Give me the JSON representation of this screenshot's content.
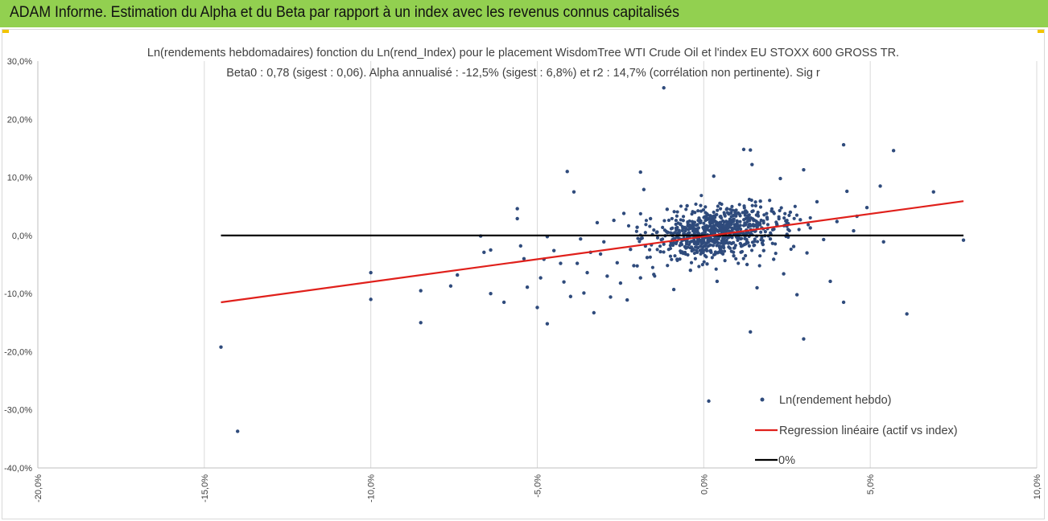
{
  "header": {
    "title": "ADAM Informe. Estimation du Alpha et du Beta par rapport à un index avec les revenus connus capitalisés"
  },
  "chart_data": {
    "type": "scatter",
    "title": "Ln(rendements hebdomadaires) fonction du Ln(rend_Index) pour le placement WisdomTree WTI Crude Oil  et l'index EU STOXX 600 GROSS TR.",
    "subtitle": "Beta0 : 0,78 (sigest : 0,06). Alpha annualisé : -12,5% (sigest : 6,8%) et r2 : 14,7% (corrélation non pertinente). Sig r",
    "xlim": [
      -20,
      10
    ],
    "ylim": [
      -40,
      30
    ],
    "x_ticks": [
      "-20,0%",
      "-15,0%",
      "-10,0%",
      "-5,0%",
      "0,0%",
      "5,0%",
      "10,0%"
    ],
    "y_ticks": [
      "30,0%",
      "20,0%",
      "10,0%",
      "0,0%",
      "-10,0%",
      "-20,0%",
      "-30,0%",
      "-40,0%"
    ],
    "grid": "vertical",
    "legend_position": "bottom-right",
    "colors": {
      "points": "#2f4b7c",
      "regression": "#e0201b",
      "zero": "#000000",
      "header": "#92d050"
    },
    "series": [
      {
        "name": "Ln(rendement hebdo)",
        "kind": "scatter",
        "points": [
          [
            -14.5,
            -19.2
          ],
          [
            -14.0,
            -33.7
          ],
          [
            -10.0,
            -6.4
          ],
          [
            -10.0,
            -11.0
          ],
          [
            -8.5,
            -9.5
          ],
          [
            -8.5,
            -15.0
          ],
          [
            -7.6,
            -8.7
          ],
          [
            -7.4,
            -6.8
          ],
          [
            -6.7,
            -0.1
          ],
          [
            -6.6,
            -2.9
          ],
          [
            -6.4,
            -2.5
          ],
          [
            -6.4,
            -10.0
          ],
          [
            -6.0,
            -11.5
          ],
          [
            -5.6,
            4.6
          ],
          [
            -5.6,
            2.9
          ],
          [
            -5.5,
            -1.8
          ],
          [
            -5.4,
            -4.0
          ],
          [
            -5.3,
            -8.9
          ],
          [
            -5.0,
            -12.4
          ],
          [
            -4.9,
            -7.3
          ],
          [
            -4.8,
            -4.1
          ],
          [
            -4.7,
            -15.2
          ],
          [
            -4.7,
            -0.2
          ],
          [
            -4.5,
            -2.6
          ],
          [
            -4.3,
            -4.8
          ],
          [
            -4.2,
            -8.0
          ],
          [
            -4.1,
            11.0
          ],
          [
            -4.0,
            -10.5
          ],
          [
            -3.9,
            7.5
          ],
          [
            -3.8,
            -4.8
          ],
          [
            -3.7,
            -0.6
          ],
          [
            -3.6,
            -9.9
          ],
          [
            -3.5,
            -6.4
          ],
          [
            -3.4,
            -2.9
          ],
          [
            -3.3,
            -13.3
          ],
          [
            -3.2,
            2.2
          ],
          [
            -3.1,
            -3.2
          ],
          [
            -3.0,
            -1.1
          ],
          [
            -2.9,
            -7.0
          ],
          [
            -2.8,
            -10.6
          ],
          [
            -2.7,
            2.6
          ],
          [
            -2.6,
            -4.7
          ],
          [
            -2.5,
            -8.2
          ],
          [
            -2.4,
            3.8
          ],
          [
            -2.3,
            -11.1
          ],
          [
            -2.2,
            -2.4
          ],
          [
            -2.1,
            -5.2
          ],
          [
            -2.0,
            1.4
          ],
          [
            -1.9,
            10.9
          ],
          [
            -1.9,
            -7.3
          ],
          [
            -1.8,
            7.9
          ],
          [
            -1.7,
            -3.8
          ],
          [
            -1.6,
            2.9
          ],
          [
            -1.5,
            -6.7
          ],
          [
            -1.4,
            0.6
          ],
          [
            -1.3,
            -2.8
          ],
          [
            -1.2,
            25.4
          ],
          [
            -1.1,
            4.5
          ],
          [
            -1.0,
            -1.7
          ],
          [
            -0.9,
            -9.3
          ],
          [
            -0.8,
            -4.1
          ],
          [
            -0.7,
            1.9
          ],
          [
            -0.6,
            -0.5
          ],
          [
            -0.5,
            5.1
          ],
          [
            -0.4,
            -6.0
          ],
          [
            -0.3,
            0.8
          ],
          [
            -0.2,
            -2.9
          ],
          [
            -0.1,
            2.2
          ],
          [
            0.0,
            -1.0
          ],
          [
            0.1,
            -4.9
          ],
          [
            0.15,
            -28.5
          ],
          [
            0.2,
            3.4
          ],
          [
            0.3,
            10.2
          ],
          [
            0.35,
            -0.2
          ],
          [
            0.4,
            -7.9
          ],
          [
            0.5,
            1.7
          ],
          [
            0.6,
            -2.1
          ],
          [
            0.7,
            4.6
          ],
          [
            0.8,
            0.4
          ],
          [
            0.9,
            -3.5
          ],
          [
            1.0,
            2.5
          ],
          [
            1.1,
            -1.4
          ],
          [
            1.2,
            14.8
          ],
          [
            1.3,
            -5.0
          ],
          [
            1.4,
            14.7
          ],
          [
            1.45,
            12.2
          ],
          [
            1.4,
            -16.6
          ],
          [
            1.5,
            0.9
          ],
          [
            1.6,
            -9.0
          ],
          [
            1.7,
            5.9
          ],
          [
            1.8,
            -2.6
          ],
          [
            1.9,
            3.1
          ],
          [
            2.0,
            -0.6
          ],
          [
            2.1,
            -4.1
          ],
          [
            2.2,
            1.8
          ],
          [
            2.3,
            9.8
          ],
          [
            2.4,
            -6.6
          ],
          [
            2.5,
            0.2
          ],
          [
            2.6,
            4.0
          ],
          [
            2.7,
            -1.9
          ],
          [
            2.8,
            -10.2
          ],
          [
            2.9,
            2.7
          ],
          [
            3.0,
            11.3
          ],
          [
            3.0,
            -17.8
          ],
          [
            3.1,
            -3.0
          ],
          [
            3.2,
            1.3
          ],
          [
            3.4,
            5.8
          ],
          [
            3.6,
            -0.7
          ],
          [
            3.8,
            -7.9
          ],
          [
            4.0,
            2.4
          ],
          [
            4.2,
            -11.5
          ],
          [
            4.2,
            15.6
          ],
          [
            4.3,
            7.6
          ],
          [
            4.5,
            0.8
          ],
          [
            4.6,
            3.3
          ],
          [
            4.9,
            4.8
          ],
          [
            5.3,
            8.5
          ],
          [
            5.4,
            -1.1
          ],
          [
            5.7,
            14.6
          ],
          [
            6.1,
            -13.5
          ],
          [
            6.9,
            7.5
          ],
          [
            7.8,
            -0.8
          ]
        ]
      },
      {
        "name": "Regression linéaire (actif vs index)",
        "kind": "line",
        "points": [
          [
            -14.5,
            -11.5
          ],
          [
            7.8,
            5.9
          ]
        ]
      },
      {
        "name": "0%",
        "kind": "line",
        "points": [
          [
            -14.5,
            0.0
          ],
          [
            7.8,
            0.0
          ]
        ]
      }
    ]
  }
}
